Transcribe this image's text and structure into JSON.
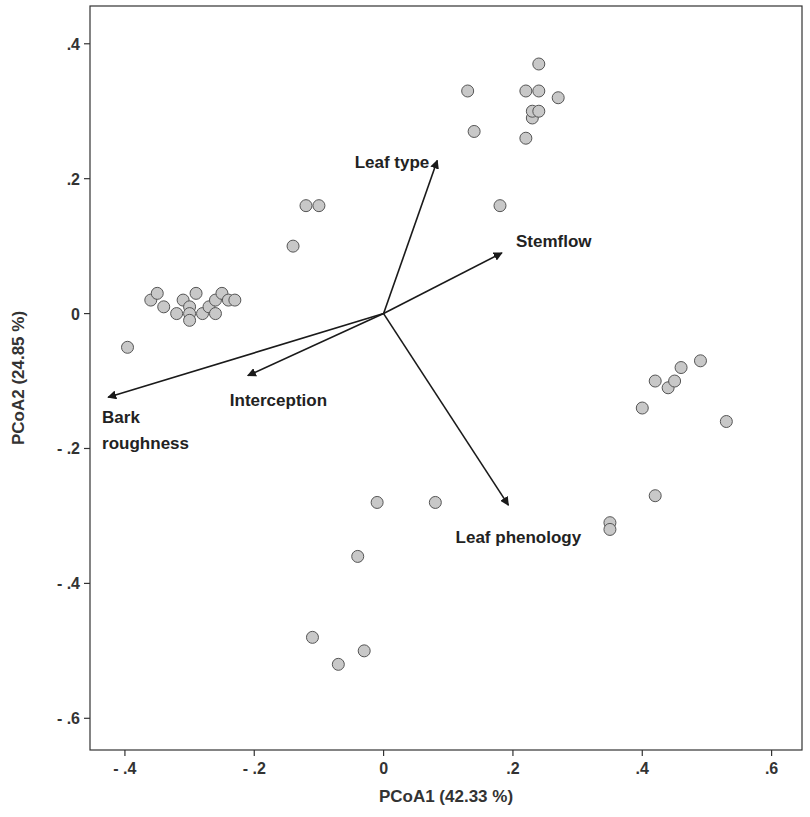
{
  "chart_data": {
    "type": "scatter",
    "x_label": "PCoA1 (42.33 %)",
    "y_label": "PCoA2 (24.85 %)",
    "x": [
      -0.396,
      -0.36,
      -0.35,
      -0.34,
      -0.32,
      -0.31,
      -0.3,
      -0.3,
      -0.3,
      -0.29,
      -0.28,
      -0.27,
      -0.26,
      -0.26,
      -0.25,
      -0.24,
      -0.23,
      -0.14,
      -0.12,
      -0.1,
      0.13,
      0.14,
      0.18,
      0.22,
      0.22,
      0.23,
      0.23,
      0.24,
      0.24,
      0.24,
      0.27,
      0.4,
      0.42,
      0.44,
      0.45,
      0.46,
      0.49,
      0.53,
      0.42,
      0.35,
      0.35,
      0.08,
      -0.01,
      -0.04,
      -0.11,
      -0.07,
      -0.03
    ],
    "values": [
      -0.05,
      0.02,
      0.03,
      0.01,
      0.0,
      0.02,
      0.01,
      0.0,
      -0.01,
      0.03,
      0.0,
      0.01,
      0.02,
      0.0,
      0.03,
      0.02,
      0.02,
      0.1,
      0.16,
      0.16,
      0.33,
      0.27,
      0.16,
      0.26,
      0.33,
      0.29,
      0.3,
      0.37,
      0.33,
      0.3,
      0.32,
      -0.14,
      -0.1,
      -0.11,
      -0.1,
      -0.08,
      -0.07,
      -0.16,
      -0.27,
      -0.31,
      -0.32,
      -0.28,
      -0.28,
      -0.36,
      -0.48,
      -0.52,
      -0.5
    ],
    "color": "#c8c8c8",
    "marker": "circle",
    "vectors": [
      {
        "label": "Leaf type",
        "x": 0.083,
        "y": 0.227
      },
      {
        "label": "Stemflow",
        "x": 0.183,
        "y": 0.09
      },
      {
        "label": "Bark roughness",
        "x": -0.426,
        "y": -0.124
      },
      {
        "label": "Interception",
        "x": -0.21,
        "y": -0.092
      },
      {
        "label": "Leaf phenology",
        "x": 0.193,
        "y": -0.284
      }
    ],
    "xlim": [
      -0.454,
      0.647
    ],
    "ylim": [
      -0.647,
      0.456
    ],
    "xticks": [
      {
        "value": -0.4,
        "label": "- .4"
      },
      {
        "value": -0.2,
        "label": "- .2"
      },
      0,
      {
        "value": 0.2,
        "label": ".2"
      },
      {
        "value": 0.4,
        "label": ".4"
      },
      {
        "value": 0.6,
        "label": ".6"
      }
    ],
    "yticks": [
      {
        "value": -0.6,
        "label": "- .6"
      },
      {
        "value": -0.4,
        "label": "- .4"
      },
      {
        "value": -0.2,
        "label": "- .2"
      },
      0,
      {
        "value": 0.2,
        "label": ".2"
      },
      {
        "value": 0.4,
        "label": ".4"
      }
    ],
    "grid": false
  }
}
